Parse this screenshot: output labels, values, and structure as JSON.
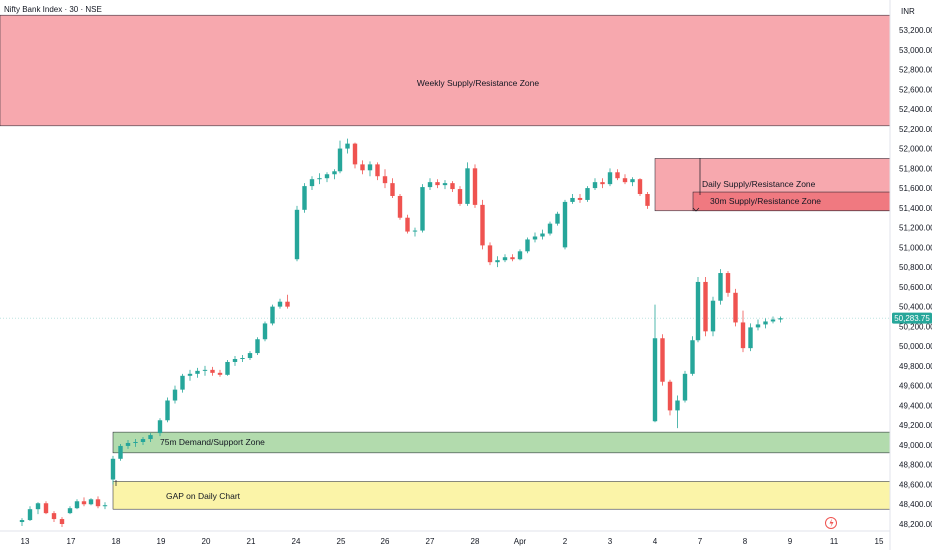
{
  "header": {
    "symbol_title": "Nifty Bank Index · 30 · NSE",
    "currency": "INR"
  },
  "chart_data": {
    "type": "candlestick",
    "y_axis_ticks": [
      "53,200.00",
      "53,000.00",
      "52,800.00",
      "52,600.00",
      "52,400.00",
      "52,200.00",
      "52,000.00",
      "51,800.00",
      "51,600.00",
      "51,400.00",
      "51,200.00",
      "51,000.00",
      "50,800.00",
      "50,600.00",
      "50,400.00",
      "50,200.00",
      "50,000.00",
      "49,800.00",
      "49,600.00",
      "49,400.00",
      "49,200.00",
      "49,000.00",
      "48,800.00",
      "48,600.00",
      "48,400.00",
      "48,200.00"
    ],
    "x_axis_ticks": [
      "13",
      "17",
      "18",
      "19",
      "20",
      "21",
      "24",
      "25",
      "26",
      "27",
      "28",
      "Apr",
      "2",
      "3",
      "4",
      "7",
      "8",
      "9",
      "11",
      "15"
    ],
    "ylim": [
      48170,
      53350
    ],
    "last_price": 50283.75,
    "last_price_label": "50,283.75",
    "zones": [
      {
        "label": "Weekly Supply/Resistance Zone",
        "from": 52230,
        "to": 53350,
        "color": "#f7a8ae"
      },
      {
        "label": "Daily Supply/Resistance Zone",
        "from": 51370,
        "to": 51900,
        "color": "#f7a8ae"
      },
      {
        "label": "30m Supply/Resistance Zone",
        "from": 51370,
        "to": 51560,
        "color": "#f07980"
      },
      {
        "label": "75m Demand/Support Zone",
        "from": 48920,
        "to": 49130,
        "color": "#b2dbad"
      },
      {
        "label": "GAP on Daily Chart",
        "from": 48350,
        "to": 48630,
        "color": "#fbf4a8"
      }
    ],
    "colors": {
      "up": "#26a69a",
      "down": "#ef5350",
      "axis_text": "#131722",
      "last_price_bg": "#26a69a"
    },
    "candles": [
      [
        48220,
        48260,
        48180,
        48240
      ],
      [
        48240,
        48380,
        48230,
        48350
      ],
      [
        48350,
        48420,
        48300,
        48410
      ],
      [
        48410,
        48430,
        48300,
        48310
      ],
      [
        48310,
        48330,
        48220,
        48250
      ],
      [
        48250,
        48270,
        48170,
        48200
      ],
      [
        48310,
        48380,
        48300,
        48360
      ],
      [
        48360,
        48450,
        48350,
        48430
      ],
      [
        48430,
        48470,
        48380,
        48400
      ],
      [
        48400,
        48460,
        48390,
        48450
      ],
      [
        48450,
        48480,
        48360,
        48380
      ],
      [
        48380,
        48420,
        48350,
        48390
      ],
      [
        48650,
        48890,
        48600,
        48860
      ],
      [
        48860,
        49010,
        48840,
        48990
      ],
      [
        48990,
        49050,
        48960,
        49020
      ],
      [
        49020,
        49060,
        48980,
        49030
      ],
      [
        49030,
        49080,
        49000,
        49060
      ],
      [
        49060,
        49120,
        49030,
        49100
      ],
      [
        49120,
        49270,
        49090,
        49250
      ],
      [
        49250,
        49480,
        49230,
        49450
      ],
      [
        49450,
        49600,
        49420,
        49560
      ],
      [
        49560,
        49720,
        49530,
        49700
      ],
      [
        49700,
        49760,
        49650,
        49720
      ],
      [
        49720,
        49780,
        49680,
        49750
      ],
      [
        49750,
        49800,
        49700,
        49760
      ],
      [
        49760,
        49790,
        49700,
        49730
      ],
      [
        49730,
        49760,
        49690,
        49710
      ],
      [
        49710,
        49860,
        49700,
        49840
      ],
      [
        49840,
        49900,
        49800,
        49870
      ],
      [
        49870,
        49910,
        49840,
        49880
      ],
      [
        49880,
        49950,
        49860,
        49930
      ],
      [
        49930,
        50090,
        49910,
        50070
      ],
      [
        50070,
        50250,
        50050,
        50230
      ],
      [
        50230,
        50420,
        50210,
        50400
      ],
      [
        50400,
        50480,
        50380,
        50450
      ],
      [
        50450,
        50520,
        50380,
        50400
      ],
      [
        50880,
        51420,
        50860,
        51380
      ],
      [
        51380,
        51650,
        51350,
        51620
      ],
      [
        51620,
        51720,
        51580,
        51690
      ],
      [
        51690,
        51750,
        51640,
        51700
      ],
      [
        51700,
        51760,
        51660,
        51740
      ],
      [
        51740,
        51790,
        51690,
        51770
      ],
      [
        51770,
        52080,
        51750,
        52000
      ],
      [
        52000,
        52100,
        51950,
        52050
      ],
      [
        52050,
        52060,
        51800,
        51840
      ],
      [
        51840,
        51880,
        51740,
        51780
      ],
      [
        51780,
        51870,
        51720,
        51840
      ],
      [
        51840,
        51860,
        51680,
        51720
      ],
      [
        51720,
        51790,
        51600,
        51650
      ],
      [
        51650,
        51700,
        51500,
        51520
      ],
      [
        51520,
        51540,
        51280,
        51300
      ],
      [
        51300,
        51330,
        51140,
        51160
      ],
      [
        51160,
        51200,
        51110,
        51170
      ],
      [
        51170,
        51640,
        51150,
        51610
      ],
      [
        51610,
        51700,
        51580,
        51660
      ],
      [
        51660,
        51690,
        51600,
        51630
      ],
      [
        51630,
        51680,
        51590,
        51650
      ],
      [
        51650,
        51670,
        51560,
        51590
      ],
      [
        51590,
        51620,
        51420,
        51440
      ],
      [
        51440,
        51860,
        51420,
        51800
      ],
      [
        51800,
        51840,
        51400,
        51430
      ],
      [
        51430,
        51480,
        50980,
        51020
      ],
      [
        51020,
        51050,
        50820,
        50850
      ],
      [
        50850,
        50910,
        50800,
        50870
      ],
      [
        50870,
        50930,
        50850,
        50900
      ],
      [
        50900,
        50930,
        50860,
        50880
      ],
      [
        50880,
        50980,
        50870,
        50960
      ],
      [
        50960,
        51100,
        50940,
        51080
      ],
      [
        51080,
        51150,
        51050,
        51110
      ],
      [
        51110,
        51180,
        51080,
        51140
      ],
      [
        51140,
        51260,
        51120,
        51240
      ],
      [
        51240,
        51360,
        51220,
        51340
      ],
      [
        51000,
        51480,
        50980,
        51460
      ],
      [
        51460,
        51540,
        51440,
        51500
      ],
      [
        51500,
        51540,
        51450,
        51480
      ],
      [
        51480,
        51620,
        51460,
        51600
      ],
      [
        51600,
        51700,
        51580,
        51660
      ],
      [
        51660,
        51700,
        51600,
        51640
      ],
      [
        51640,
        51800,
        51620,
        51760
      ],
      [
        51760,
        51790,
        51680,
        51700
      ],
      [
        51700,
        51740,
        51640,
        51660
      ],
      [
        51660,
        51710,
        51620,
        51690
      ],
      [
        51690,
        51700,
        51520,
        51540
      ],
      [
        51540,
        51560,
        51390,
        51420
      ],
      [
        49240,
        50420,
        49230,
        50080
      ],
      [
        50080,
        50120,
        49600,
        49640
      ],
      [
        49640,
        49660,
        49300,
        49350
      ],
      [
        49350,
        49500,
        49170,
        49450
      ],
      [
        49450,
        49750,
        49430,
        49720
      ],
      [
        49720,
        50100,
        49700,
        50060
      ],
      [
        50060,
        50700,
        50040,
        50650
      ],
      [
        50650,
        50700,
        50100,
        50150
      ],
      [
        50150,
        50500,
        50100,
        50460
      ],
      [
        50460,
        50780,
        50420,
        50740
      ],
      [
        50740,
        50760,
        50500,
        50540
      ],
      [
        50540,
        50580,
        50200,
        50240
      ],
      [
        50240,
        50360,
        49940,
        49980
      ],
      [
        49980,
        50230,
        49950,
        50190
      ],
      [
        50190,
        50270,
        50160,
        50220
      ],
      [
        50220,
        50280,
        50180,
        50250
      ],
      [
        50250,
        50300,
        50230,
        50270
      ],
      [
        50270,
        50300,
        50240,
        50283
      ]
    ],
    "candle_labels": []
  },
  "watermark_icon": "tradingview-logo-icon"
}
